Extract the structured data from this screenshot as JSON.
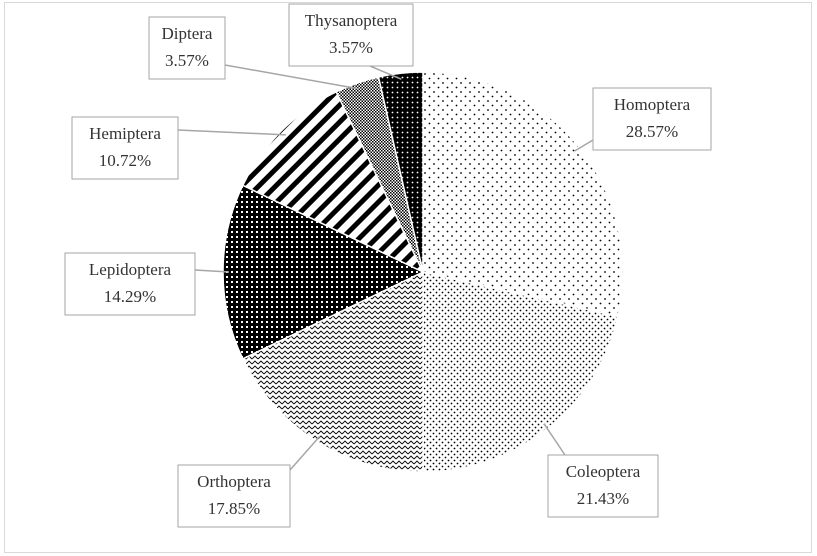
{
  "chart_data": {
    "type": "pie",
    "categories": [
      "Homoptera",
      "Coleoptera",
      "Orthoptera",
      "Lepidoptera",
      "Hemiptera",
      "Diptera",
      "Thysanoptera"
    ],
    "values": [
      28.57,
      21.43,
      17.85,
      14.29,
      10.72,
      3.57,
      3.57
    ],
    "value_labels": [
      "28.57%",
      "21.43%",
      "17.85%",
      "14.29%",
      "10.72%",
      "3.57%",
      "3.57%"
    ]
  }
}
